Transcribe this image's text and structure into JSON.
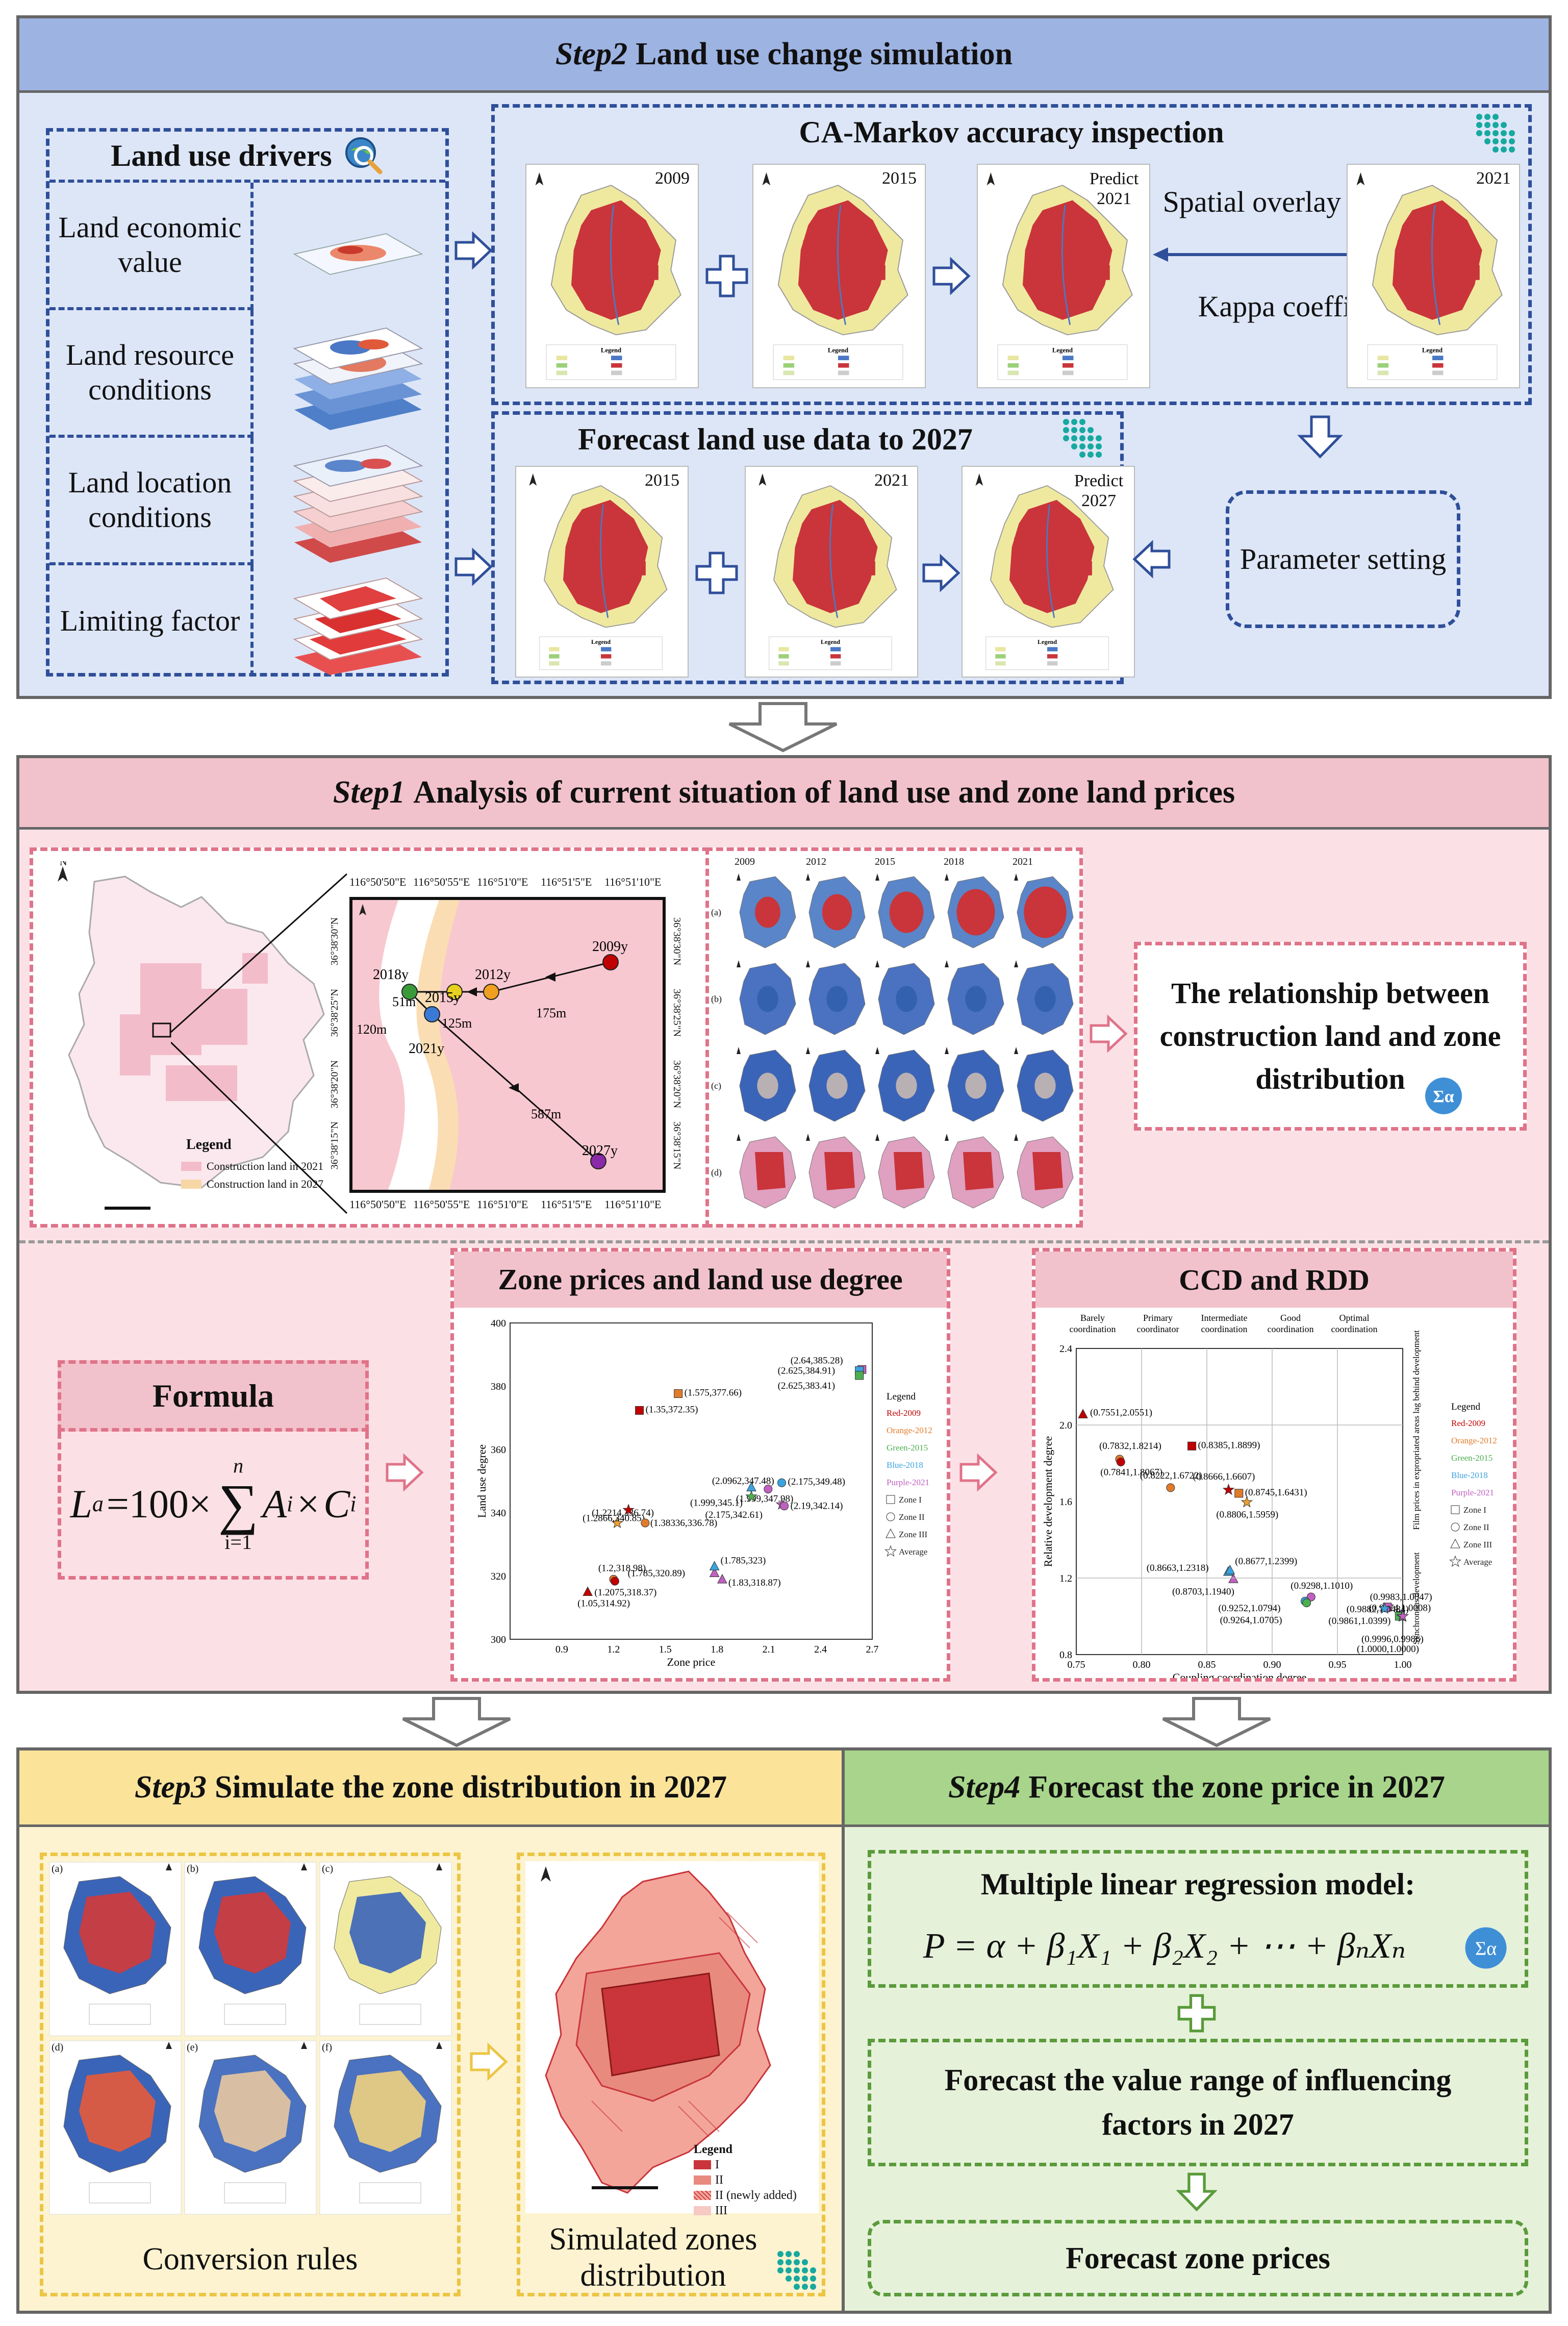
{
  "colors": {
    "blueHeader": "#9db3e2",
    "blueBg": "#dde6f7",
    "blueDash": "#2f4f9a",
    "pinkHeader": "#f2c2cc",
    "pinkBg": "#fbe1e6",
    "pinkDash": "#e07389",
    "yellowHeader": "#fbe49a",
    "yellowBg": "#fdf3d0",
    "yellowDash": "#ecc544",
    "greenHeader": "#a8d58b",
    "greenBg": "#e6f1da",
    "greenDash": "#5a9b3a",
    "landRed": "#c9353a",
    "landYellow": "#efe9a0"
  },
  "step2": {
    "title_em": "Step2",
    "title": "Land use change simulation",
    "drivers": {
      "title": "Land use drivers",
      "items": [
        "Land economic value",
        "Land resource conditions",
        "Land location conditions",
        "Limiting factor"
      ]
    },
    "accuracy": {
      "title": "CA-Markov accuracy inspection",
      "maps": [
        "2009",
        "2015",
        "Predict 2021",
        "2021"
      ],
      "overlay": "Spatial overlay analysis",
      "kappa": "Kappa coefficient",
      "legend": "Legend"
    },
    "forecast": {
      "title": "Forecast land use data to 2027",
      "maps": [
        "2015",
        "2021",
        "Predict 2027"
      ]
    },
    "param": "Parameter setting"
  },
  "step1": {
    "title_em": "Step1",
    "title": "Analysis of current situation of land use and zone land prices",
    "centroid": {
      "legend": "Legend",
      "legend_items": [
        "Construction land in 2021",
        "Construction land in 2027"
      ],
      "top_ticks": [
        "116°50'50\"E",
        "116°50'55\"E",
        "116°51'0\"E",
        "116°51'5\"E",
        "116°51'10\"E"
      ],
      "bottom_ticks": [
        "116°50'50\"E",
        "116°50'55\"E",
        "116°51'0\"E",
        "116°51'5\"E",
        "116°51'10\"E"
      ],
      "left_ticks": [
        "36°38'30\"N",
        "36°38'25\"N",
        "36°38'20\"N",
        "36°38'15\"N"
      ],
      "right_ticks": [
        "36°38'30\"N",
        "36°38'25\"N",
        "36°38'20\"N",
        "36°38'15\"N"
      ],
      "points": [
        {
          "label": "2009y"
        },
        {
          "label": "2012y"
        },
        {
          "label": "2015y"
        },
        {
          "label": "2018y"
        },
        {
          "label": "2021y"
        },
        {
          "label": "2027y"
        }
      ],
      "distances": [
        "175m",
        "125m",
        "51m",
        "120m",
        "587m"
      ]
    },
    "grid": {
      "years": [
        "2009",
        "2012",
        "2015",
        "2018",
        "2021"
      ],
      "rows": [
        "(a)",
        "(b)",
        "(c)",
        "(d)"
      ]
    },
    "relationship": "The relationship between construction land and zone distribution",
    "formula": {
      "title": "Formula",
      "lhs": "L",
      "lhs_sub": "a",
      "eq": "=100×",
      "sum_top": "n",
      "sum_sym": "∑",
      "sum_bot": "i=1",
      "term": "A",
      "term_sub": "i",
      "times": "×",
      "term2": "C",
      "term2_sub": "i"
    },
    "zone_chart_title": "Zone prices and land use degree",
    "ccd_title": "CCD and RDD"
  },
  "chart_data": [
    {
      "type": "scatter",
      "title": "Zone prices and land use degree",
      "xlabel": "Zone price",
      "ylabel": "Land use degree",
      "xlim": [
        0.6,
        2.7
      ],
      "ylim": [
        300,
        400
      ],
      "xticks": [
        "0.9",
        "1.2",
        "1.5",
        "1.8",
        "2.1",
        "2.4",
        "2.7"
      ],
      "yticks": [
        "300",
        "320",
        "340",
        "360",
        "380",
        "400"
      ],
      "legend_title": "Legend",
      "legend": [
        "Red-2009",
        "Orange-2012",
        "Green-2015",
        "Blue-2018",
        "Purple-2021",
        "Zone I",
        "Zone II",
        "Zone III",
        "Average"
      ],
      "points": [
        {
          "x": 1.35,
          "y": 372.35,
          "label": "(1.35,372.35)",
          "color": "#c00000",
          "shape": "square"
        },
        {
          "x": 1.575,
          "y": 377.66,
          "label": "(1.575,377.66)",
          "color": "#e07b2a",
          "shape": "square"
        },
        {
          "x": 2.64,
          "y": 385.28,
          "label": "(2.64,385.28)",
          "color": "#c060c0",
          "shape": "square"
        },
        {
          "x": 2.625,
          "y": 384.91,
          "label": "(2.625,384.91)",
          "color": "#3aa4e0",
          "shape": "square"
        },
        {
          "x": 2.625,
          "y": 383.41,
          "label": "(2.625,383.41)",
          "color": "#4caf50",
          "shape": "square"
        },
        {
          "x": 1.2214,
          "y": 336.74,
          "label": "(1.2214,336.74)",
          "color": "#f0a030",
          "shape": "star"
        },
        {
          "x": 1.2866,
          "y": 340.85,
          "label": "(1.2866,340.85)",
          "color": "#c00000",
          "shape": "star"
        },
        {
          "x": 1.38336,
          "y": 336.78,
          "label": "(1.38336,336.78)",
          "color": "#e07b2a",
          "shape": "circle"
        },
        {
          "x": 1.999,
          "y": 347.98,
          "label": "(1.999,347.98)",
          "color": "#3aa4e0",
          "shape": "triangle"
        },
        {
          "x": 2.0962,
          "y": 347.48,
          "label": "(2.0962,347.48)",
          "color": "#c060c0",
          "shape": "circle"
        },
        {
          "x": 1.999,
          "y": 345.1,
          "label": "(1.999,345.1)",
          "color": "#4caf50",
          "shape": "star"
        },
        {
          "x": 2.175,
          "y": 342.61,
          "label": "(2.175,342.61)",
          "color": "#c060c0",
          "shape": "star"
        },
        {
          "x": 2.175,
          "y": 349.48,
          "label": "(2.175,349.48)",
          "color": "#3aa4e0",
          "shape": "circle"
        },
        {
          "x": 2.19,
          "y": 342.14,
          "label": "(2.19,342.14)",
          "color": "#c060c0",
          "shape": "circle"
        },
        {
          "x": 1.2,
          "y": 318.98,
          "label": "(1.2,318.98)",
          "color": "#e07b2a",
          "shape": "circle"
        },
        {
          "x": 1.2075,
          "y": 318.37,
          "label": "(1.2075,318.37)",
          "color": "#c00000",
          "shape": "circle"
        },
        {
          "x": 1.05,
          "y": 314.92,
          "label": "(1.05,314.92)",
          "color": "#c00000",
          "shape": "triangle"
        },
        {
          "x": 1.785,
          "y": 320.89,
          "label": "(1.785,320.89)",
          "color": "#c060c0",
          "shape": "triangle"
        },
        {
          "x": 1.785,
          "y": 323,
          "label": "(1.785,323)",
          "color": "#3aa4e0",
          "shape": "triangle"
        },
        {
          "x": 1.83,
          "y": 318.87,
          "label": "(1.83,318.87)",
          "color": "#c060c0",
          "shape": "triangle"
        }
      ]
    },
    {
      "type": "scatter",
      "title": "CCD and RDD",
      "xlabel": "Coupling coordination degree",
      "ylabel": "Relative development degree",
      "xlim": [
        0.75,
        1.0
      ],
      "ylim": [
        0.8,
        2.4
      ],
      "xticks": [
        "0.75",
        "0.80",
        "0.85",
        "0.90",
        "0.95",
        "1.00"
      ],
      "yticks": [
        "0.8",
        "1.2",
        "1.6",
        "2.0",
        "2.4"
      ],
      "bands": [
        "Barely coordination",
        "Primary coordinator",
        "Intermediate coordination",
        "Good coordination",
        "Optimal coordination"
      ],
      "right_labels": [
        "Film prices in expropriated areas lag behind development",
        "Synchronous development"
      ],
      "legend_title": "Legend",
      "legend": [
        "Red-2009",
        "Orange-2012",
        "Green-2015",
        "Blue-2018",
        "Purple-2021",
        "Zone I",
        "Zone II",
        "Zone III",
        "Average"
      ],
      "points": [
        {
          "x": 0.7551,
          "y": 2.0551,
          "label": "(0.7551,2.0551)",
          "color": "#c00000",
          "shape": "triangle"
        },
        {
          "x": 0.7832,
          "y": 1.8214,
          "label": "(0.7832,1.8214)",
          "color": "#e07b2a",
          "shape": "circle"
        },
        {
          "x": 0.7841,
          "y": 1.8067,
          "label": "(0.7841,1.8067)",
          "color": "#c00000",
          "shape": "circle"
        },
        {
          "x": 0.8385,
          "y": 1.8899,
          "label": "(0.8385,1.8899)",
          "color": "#c00000",
          "shape": "square"
        },
        {
          "x": 0.8222,
          "y": 1.6722,
          "label": "(0.8222,1.6722)",
          "color": "#e07b2a",
          "shape": "circle"
        },
        {
          "x": 0.8666,
          "y": 1.6607,
          "label": "(0.8666,1.6607)",
          "color": "#c00000",
          "shape": "star"
        },
        {
          "x": 0.8745,
          "y": 1.6431,
          "label": "(0.8745,1.6431)",
          "color": "#e07b2a",
          "shape": "square"
        },
        {
          "x": 0.8806,
          "y": 1.5959,
          "label": "(0.8806,1.5959)",
          "color": "#f0a030",
          "shape": "star"
        },
        {
          "x": 0.8663,
          "y": 1.2318,
          "label": "(0.8663,1.2318)",
          "color": "#3aa4e0",
          "shape": "triangle"
        },
        {
          "x": 0.8677,
          "y": 1.2399,
          "label": "(0.8677,1.2399)",
          "color": "#3aa4e0",
          "shape": "triangle"
        },
        {
          "x": 0.8703,
          "y": 1.194,
          "label": "(0.8703,1.1940)",
          "color": "#c060c0",
          "shape": "triangle"
        },
        {
          "x": 0.9298,
          "y": 1.101,
          "label": "(0.9298,1.1010)",
          "color": "#c060c0",
          "shape": "circle"
        },
        {
          "x": 0.9252,
          "y": 1.0794,
          "label": "(0.9252,1.0794)",
          "color": "#3aa4e0",
          "shape": "circle"
        },
        {
          "x": 0.9264,
          "y": 1.0705,
          "label": "(0.9264,1.0705)",
          "color": "#4caf50",
          "shape": "circle"
        },
        {
          "x": 0.9983,
          "y": 1.0047,
          "label": "(0.9983,1.0047)",
          "color": "#3aa4e0",
          "shape": "square"
        },
        {
          "x": 0.9974,
          "y": 1.0008,
          "label": "(0.9974,1.0008)",
          "color": "#4caf50",
          "shape": "square"
        },
        {
          "x": 0.9882,
          "y": 1.0484,
          "label": "(0.9882,1.0484)",
          "color": "#c060c0",
          "shape": "square"
        },
        {
          "x": 0.9861,
          "y": 1.0399,
          "label": "(0.9861,1.0399)",
          "color": "#3aa4e0",
          "shape": "star"
        },
        {
          "x": 0.9996,
          "y": 0.9986,
          "label": "(0.9996,0.9986)",
          "color": "#4caf50",
          "shape": "star"
        },
        {
          "x": 1.0,
          "y": 1.0,
          "label": "(1.0000,1.0000)",
          "color": "#c060c0",
          "shape": "star"
        }
      ]
    }
  ],
  "step3": {
    "title_em": "Step3",
    "title": "Simulate the zone distribution in 2027",
    "rules_caption": "Conversion rules",
    "panels": [
      "(a)",
      "(b)",
      "(c)",
      "(d)",
      "(e)",
      "(f)"
    ],
    "zones_caption": "Simulated zones distribution",
    "legend": "Legend",
    "legend_items": [
      "I",
      "II",
      "II (newly added)",
      "III"
    ]
  },
  "step4": {
    "title_em": "Step4",
    "title": "Forecast the zone price in 2027",
    "model_title": "Multiple linear regression model:",
    "model_formula": "P = α + β₁X₁ + β₂X₂ + ⋯ + βₙXₙ",
    "forecast_factors": "Forecast the value range of influencing factors in 2027",
    "forecast_prices": "Forecast zone prices"
  }
}
